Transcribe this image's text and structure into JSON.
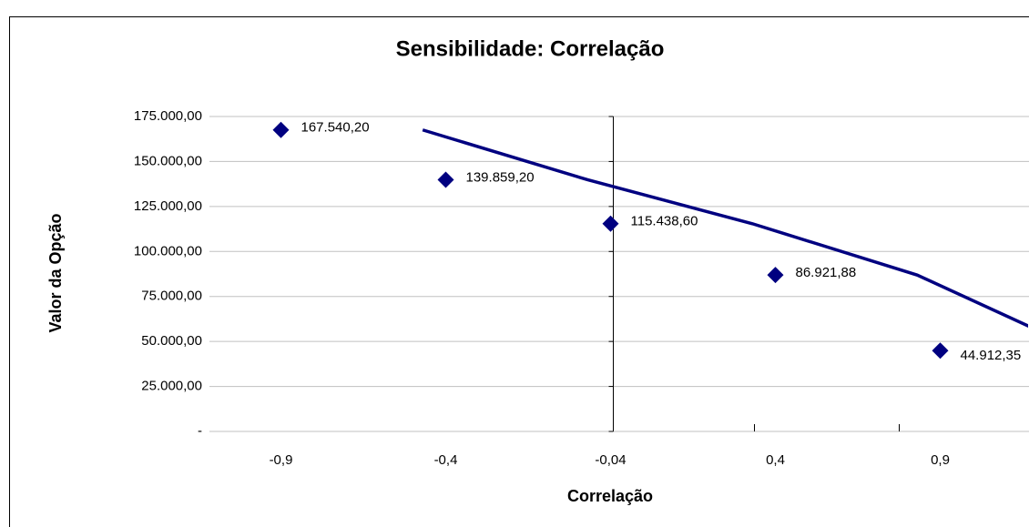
{
  "chart_data": {
    "type": "line",
    "title": "Sensibilidade:  Correlação",
    "x_label": "Correlação",
    "y_label": "Valor da Opção",
    "categories": [
      "-0,9",
      "-0,4",
      "-0,04",
      "0,4",
      "0,9"
    ],
    "series": [
      {
        "color": "#000080",
        "style": "markers",
        "values": [
          167540.2,
          139859.2,
          115438.6,
          86921.88,
          44912.35
        ],
        "value_labels": [
          "167.540,20",
          "139.859,20",
          "115.438,60",
          "86.921,88",
          "44.912,35"
        ]
      },
      {
        "color": "#000080",
        "style": "line",
        "values": [
          167540.2,
          139859.2,
          115438.6,
          86921.88,
          44912.35
        ]
      }
    ],
    "ylim": [
      0,
      175000
    ],
    "yticks": [
      {
        "value": 0,
        "label": "-"
      },
      {
        "value": 25000,
        "label": "25.000,00"
      },
      {
        "value": 50000,
        "label": "50.000,00"
      },
      {
        "value": 75000,
        "label": "75.000,00"
      },
      {
        "value": 100000,
        "label": "100.000,00"
      },
      {
        "value": 125000,
        "label": "125.000,00"
      },
      {
        "value": 150000,
        "label": "150.000,00"
      },
      {
        "value": 175000,
        "label": "175.000,00"
      }
    ],
    "grid": true
  }
}
